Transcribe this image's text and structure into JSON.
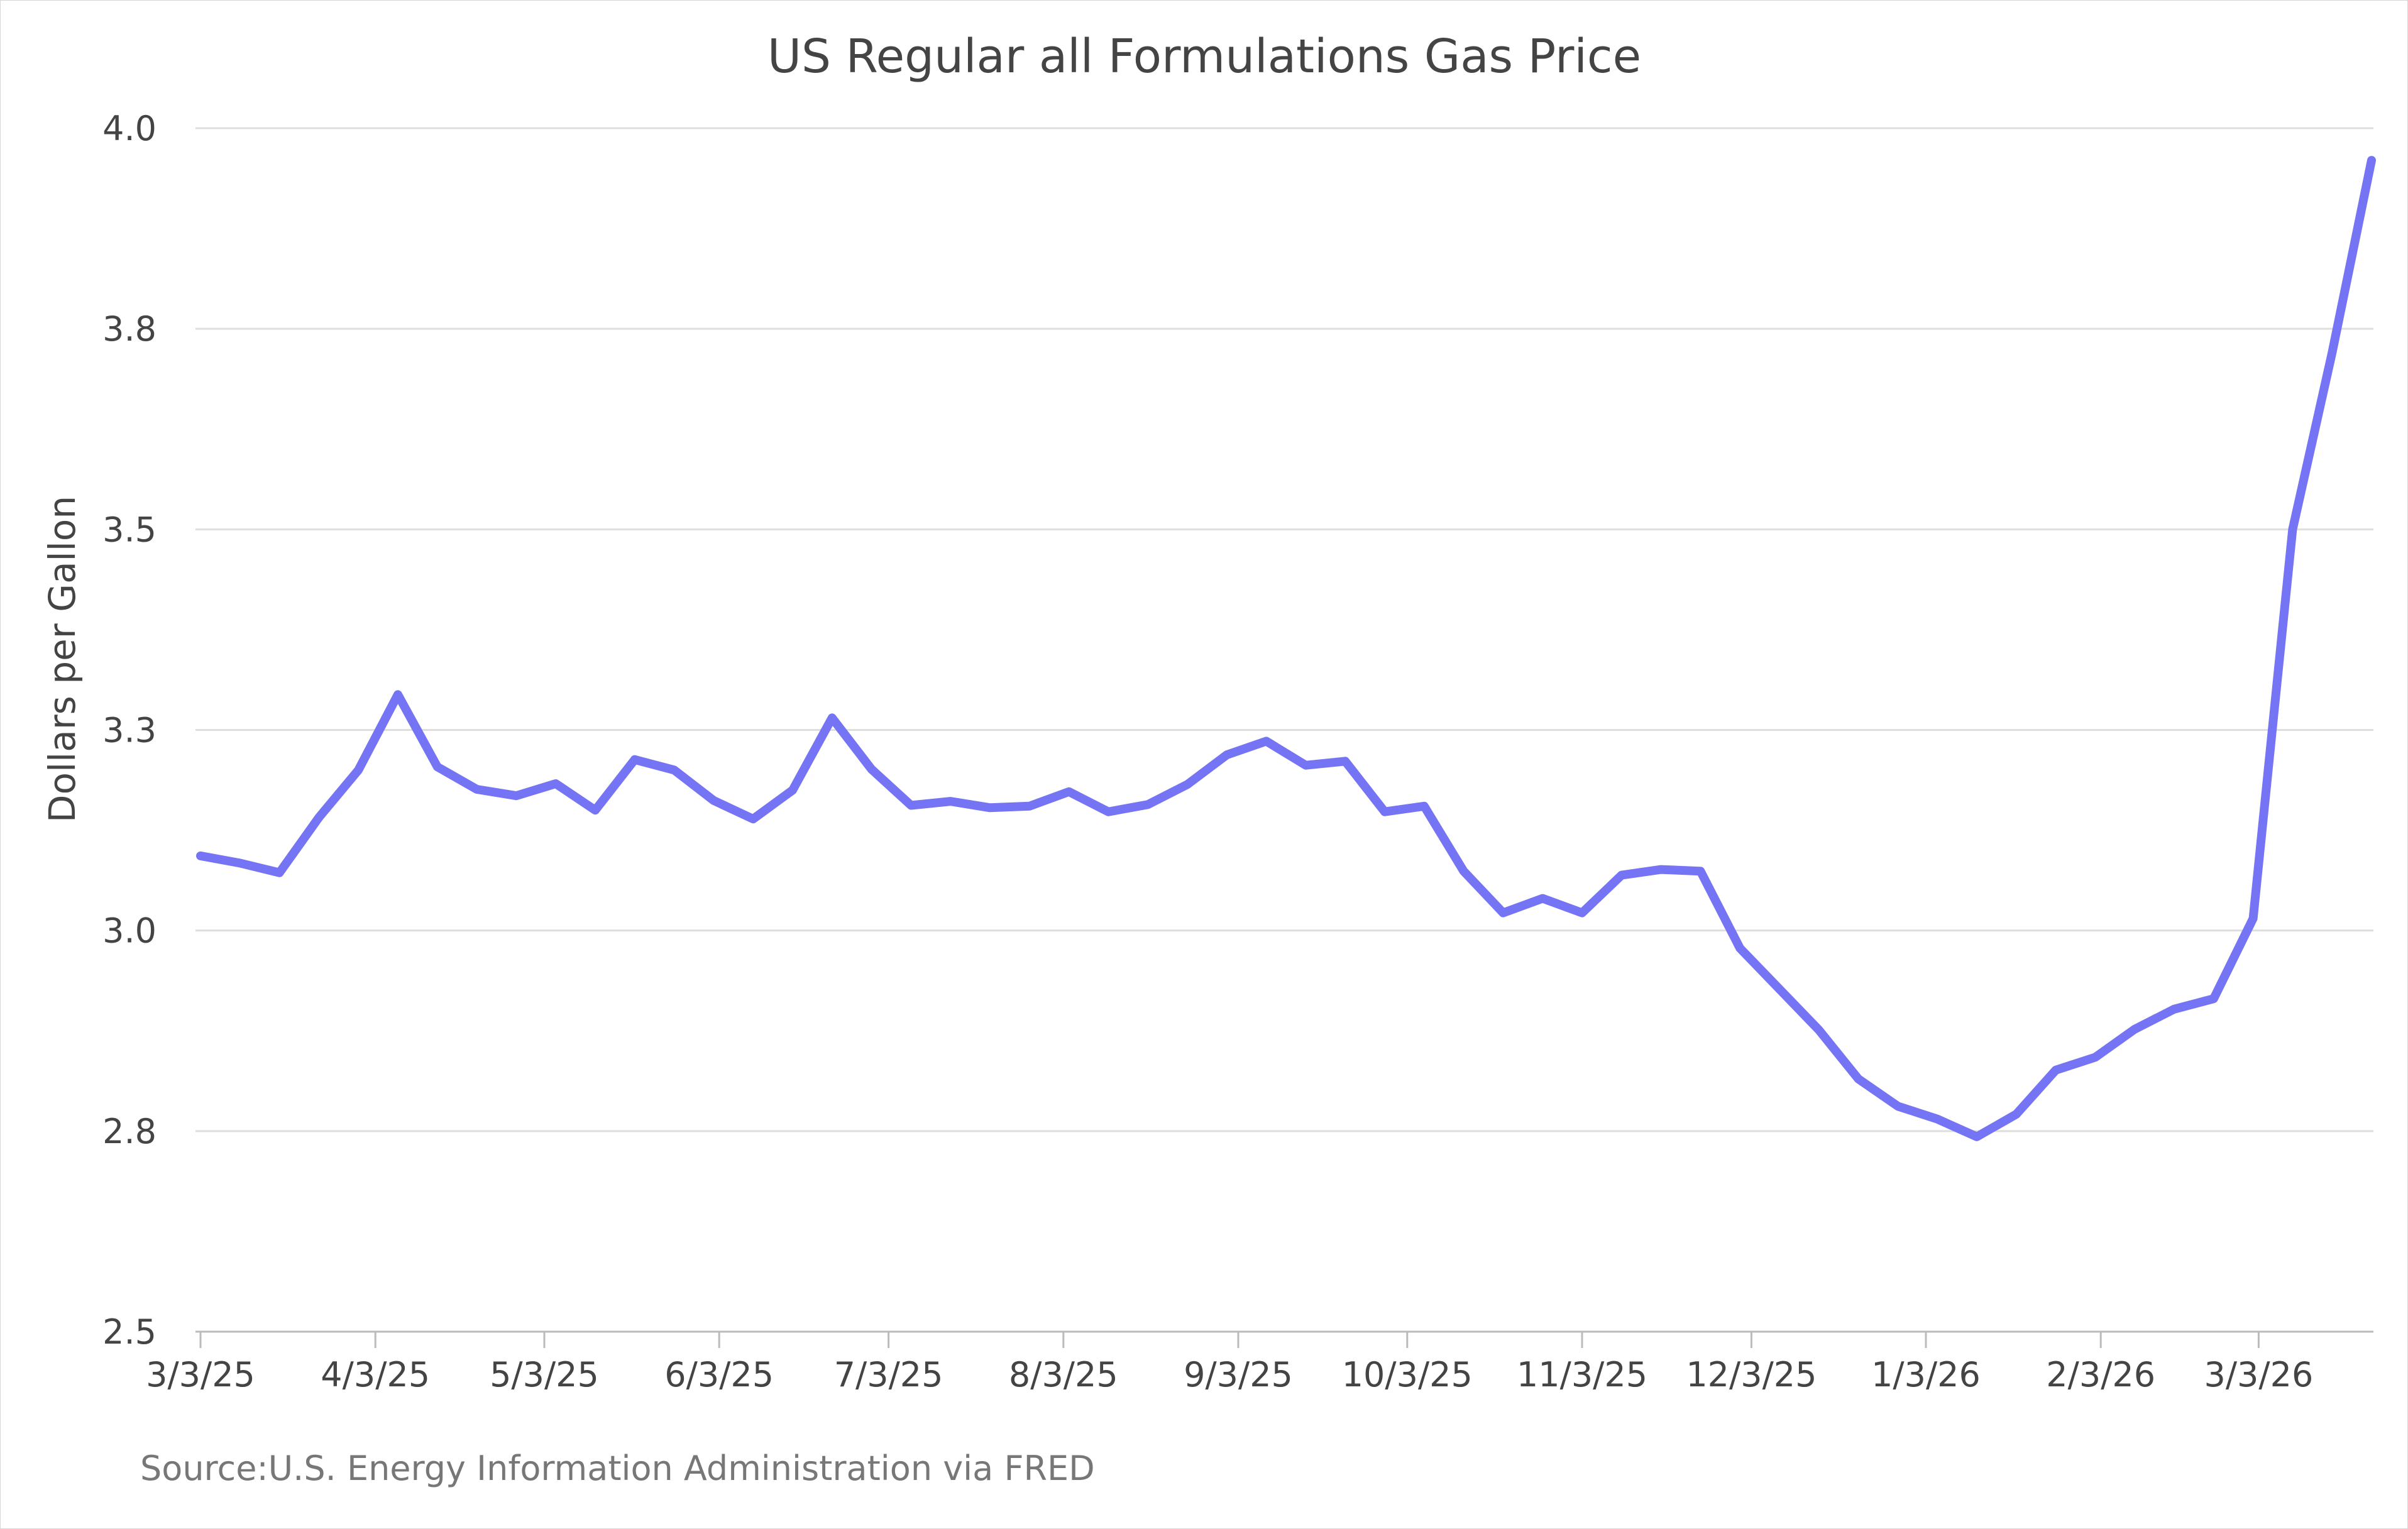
{
  "chart_data": {
    "type": "line",
    "title": "US Regular all Formulations Gas Price",
    "ylabel": "Dollars per Gallon",
    "xlabel": "",
    "source": "Source:U.S. Energy Information Administration via FRED",
    "ylim": [
      2.5,
      4.0
    ],
    "y_ticks": [
      {
        "value": 2.5,
        "label": "2.5"
      },
      {
        "value": 2.75,
        "label": "2.8"
      },
      {
        "value": 3.0,
        "label": "3.0"
      },
      {
        "value": 3.25,
        "label": "3.3"
      },
      {
        "value": 3.5,
        "label": "3.5"
      },
      {
        "value": 3.75,
        "label": "3.8"
      },
      {
        "value": 4.0,
        "label": "4.0"
      }
    ],
    "x_ticks": [
      {
        "index": 0,
        "label": "3/3/25"
      },
      {
        "index": 4.43,
        "label": "4/3/25"
      },
      {
        "index": 8.71,
        "label": "5/3/25"
      },
      {
        "index": 13.14,
        "label": "6/3/25"
      },
      {
        "index": 17.43,
        "label": "7/3/25"
      },
      {
        "index": 21.86,
        "label": "8/3/25"
      },
      {
        "index": 26.29,
        "label": "9/3/25"
      },
      {
        "index": 30.57,
        "label": "10/3/25"
      },
      {
        "index": 35.0,
        "label": "11/3/25"
      },
      {
        "index": 39.29,
        "label": "12/3/25"
      },
      {
        "index": 43.71,
        "label": "1/3/26"
      },
      {
        "index": 48.14,
        "label": "2/3/26"
      },
      {
        "index": 52.14,
        "label": "3/3/26"
      }
    ],
    "grid": true,
    "series": [
      {
        "name": "US Regular all Formulations Gas Price",
        "color": "#7474f4",
        "values": [
          3.093,
          3.084,
          3.072,
          3.141,
          3.2,
          3.294,
          3.204,
          3.176,
          3.168,
          3.183,
          3.15,
          3.213,
          3.2,
          3.162,
          3.139,
          3.175,
          3.265,
          3.201,
          3.156,
          3.161,
          3.153,
          3.155,
          3.173,
          3.148,
          3.157,
          3.182,
          3.219,
          3.236,
          3.206,
          3.211,
          3.148,
          3.155,
          3.074,
          3.022,
          3.04,
          3.022,
          3.069,
          3.076,
          3.074,
          2.978,
          2.927,
          2.876,
          2.815,
          2.781,
          2.765,
          2.743,
          2.771,
          2.826,
          2.842,
          2.877,
          2.902,
          2.915,
          3.015,
          3.5,
          3.72,
          3.96
        ]
      }
    ]
  }
}
